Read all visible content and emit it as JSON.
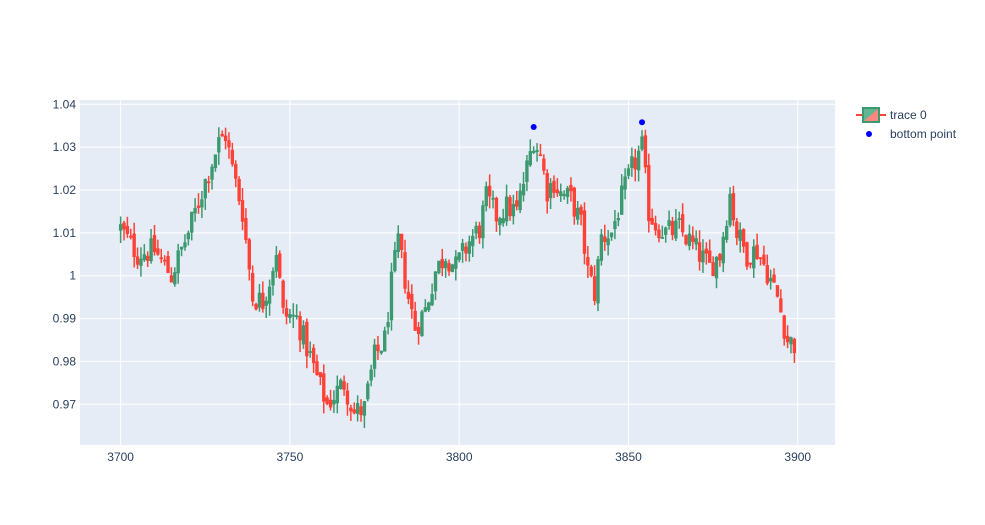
{
  "chart_data": {
    "type": "candlestick",
    "x_range": [
      3688,
      3911
    ],
    "y_range": [
      0.9605,
      1.041
    ],
    "x_ticks": [
      3700,
      3750,
      3800,
      3850,
      3900
    ],
    "y_ticks": [
      0.97,
      0.98,
      0.99,
      1,
      1.01,
      1.02,
      1.03,
      1.04
    ],
    "x_tick_labels": [
      "3700",
      "3750",
      "3800",
      "3850",
      "3900"
    ],
    "y_tick_labels": [
      "0.97",
      "0.98",
      "0.99",
      "1",
      "1.01",
      "1.02",
      "1.03",
      "1.04"
    ],
    "grid": true,
    "legend_position": "top-right",
    "colors": {
      "increasing": "#3d9970",
      "decreasing": "#ff4136",
      "increasing_fill": "#61b590",
      "decreasing_fill": "#ff8780",
      "points": "#0000ff",
      "plot_bg": "#e5ecf6",
      "grid": "#ffffff"
    },
    "legend": [
      "trace 0",
      "bottom point"
    ],
    "close_path": [
      [
        3700,
        1.011
      ],
      [
        3705,
        1.005
      ],
      [
        3710,
        1.006
      ],
      [
        3715,
        1.0
      ],
      [
        3720,
        1.01
      ],
      [
        3725,
        1.022
      ],
      [
        3729,
        1.031
      ],
      [
        3731,
        1.033
      ],
      [
        3733,
        1.025
      ],
      [
        3736,
        1.015
      ],
      [
        3739,
        0.995
      ],
      [
        3742,
        0.994
      ],
      [
        3744,
        0.999
      ],
      [
        3746,
        1.006
      ],
      [
        3748,
        0.991
      ],
      [
        3752,
        0.99
      ],
      [
        3756,
        0.981
      ],
      [
        3759,
        0.974
      ],
      [
        3761,
        0.97
      ],
      [
        3764,
        0.973
      ],
      [
        3766,
        0.975
      ],
      [
        3769,
        0.968
      ],
      [
        3772,
        0.969
      ],
      [
        3775,
        0.981
      ],
      [
        3778,
        0.985
      ],
      [
        3780,
        0.998
      ],
      [
        3782,
        1.008
      ],
      [
        3785,
        0.995
      ],
      [
        3787,
        0.988
      ],
      [
        3790,
        0.992
      ],
      [
        3793,
        1.001
      ],
      [
        3796,
        1.005
      ],
      [
        3799,
        1.002
      ],
      [
        3803,
        1.008
      ],
      [
        3806,
        1.011
      ],
      [
        3808,
        1.018
      ],
      [
        3811,
        1.014
      ],
      [
        3814,
        1.016
      ],
      [
        3817,
        1.015
      ],
      [
        3820,
        1.025
      ],
      [
        3822,
        1.032
      ],
      [
        3824,
        1.028
      ],
      [
        3826,
        1.02
      ],
      [
        3828,
        1.022
      ],
      [
        3830,
        1.019
      ],
      [
        3833,
        1.018
      ],
      [
        3836,
        1.012
      ],
      [
        3838,
        1.001
      ],
      [
        3840,
        0.996
      ],
      [
        3842,
        1.009
      ],
      [
        3845,
        1.01
      ],
      [
        3848,
        1.018
      ],
      [
        3851,
        1.025
      ],
      [
        3854,
        1.03
      ],
      [
        3856,
        1.015
      ],
      [
        3858,
        1.012
      ],
      [
        3861,
        1.01
      ],
      [
        3865,
        1.011
      ],
      [
        3868,
        1.008
      ],
      [
        3871,
        1.005
      ],
      [
        3874,
        1.002
      ],
      [
        3877,
        1.005
      ],
      [
        3880,
        1.019
      ],
      [
        3882,
        1.01
      ],
      [
        3885,
        1.005
      ],
      [
        3888,
        1.006
      ],
      [
        3891,
        1.001
      ],
      [
        3894,
        0.995
      ],
      [
        3897,
        0.985
      ],
      [
        3899,
        0.984
      ]
    ],
    "point_series": {
      "name": "bottom point",
      "x": [
        3822,
        3854
      ],
      "y": [
        1.0347,
        1.0358
      ]
    }
  }
}
